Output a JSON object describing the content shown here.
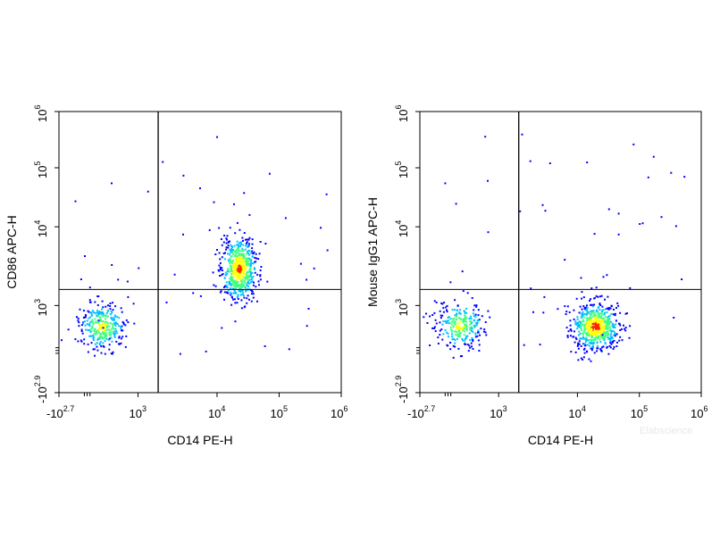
{
  "watermark": "Elabscience",
  "colors": {
    "frame": "#000000",
    "density_low": "#0000ff",
    "density_mid": "#00c0ff",
    "density_mid2": "#40ff80",
    "density_high": "#ffff00",
    "density_peak": "#ff2000"
  },
  "chart_data": [
    {
      "type": "scatter",
      "subtype": "flow-cytometry-density-dot-plot",
      "xlabel": "CD14 PE-H",
      "ylabel": "CD86 APC-H",
      "x_scale": "biexponential",
      "y_scale": "biexponential",
      "x_ticks": [
        {
          "base": "-10",
          "exp": "2.7",
          "value": -501
        },
        {
          "base": "10",
          "exp": "3",
          "value": 1000
        },
        {
          "base": "10",
          "exp": "4",
          "value": 10000
        },
        {
          "base": "10",
          "exp": "5",
          "value": 100000
        },
        {
          "base": "10",
          "exp": "6",
          "value": 1000000
        }
      ],
      "y_ticks": [
        {
          "base": "-10",
          "exp": "2.9",
          "value": -794
        },
        {
          "base": "10",
          "exp": "3",
          "value": 1000
        },
        {
          "base": "10",
          "exp": "4",
          "value": 10000
        },
        {
          "base": "10",
          "exp": "5",
          "value": 100000
        },
        {
          "base": "10",
          "exp": "6",
          "value": 1000000
        }
      ],
      "quadrant_gate": {
        "x": 1800,
        "y": 1600
      },
      "populations": [
        {
          "name_hint": "CD14- CD86- cluster",
          "x_center": 300,
          "y_center": 580,
          "relative_size": 0.35
        },
        {
          "name_hint": "CD14+ CD86+ cluster",
          "x_center": 22000,
          "y_center": 3000,
          "relative_size": 0.65
        }
      ]
    },
    {
      "type": "scatter",
      "subtype": "flow-cytometry-density-dot-plot",
      "xlabel": "CD14 PE-H",
      "ylabel": "Mouse IgG1 APC-H",
      "x_scale": "biexponential",
      "y_scale": "biexponential",
      "x_ticks": [
        {
          "base": "-10",
          "exp": "2.7",
          "value": -501
        },
        {
          "base": "10",
          "exp": "3",
          "value": 1000
        },
        {
          "base": "10",
          "exp": "4",
          "value": 10000
        },
        {
          "base": "10",
          "exp": "5",
          "value": 100000
        },
        {
          "base": "10",
          "exp": "6",
          "value": 1000000
        }
      ],
      "y_ticks": [
        {
          "base": "-10",
          "exp": "2.9",
          "value": -794
        },
        {
          "base": "10",
          "exp": "3",
          "value": 1000
        },
        {
          "base": "10",
          "exp": "4",
          "value": 10000
        },
        {
          "base": "10",
          "exp": "5",
          "value": 100000
        },
        {
          "base": "10",
          "exp": "6",
          "value": 1000000
        }
      ],
      "quadrant_gate": {
        "x": 1800,
        "y": 1600
      },
      "populations": [
        {
          "name_hint": "CD14- isotype cluster",
          "x_center": 250,
          "y_center": 600,
          "relative_size": 0.3
        },
        {
          "name_hint": "CD14+ isotype cluster",
          "x_center": 19000,
          "y_center": 580,
          "relative_size": 0.7
        }
      ]
    }
  ]
}
